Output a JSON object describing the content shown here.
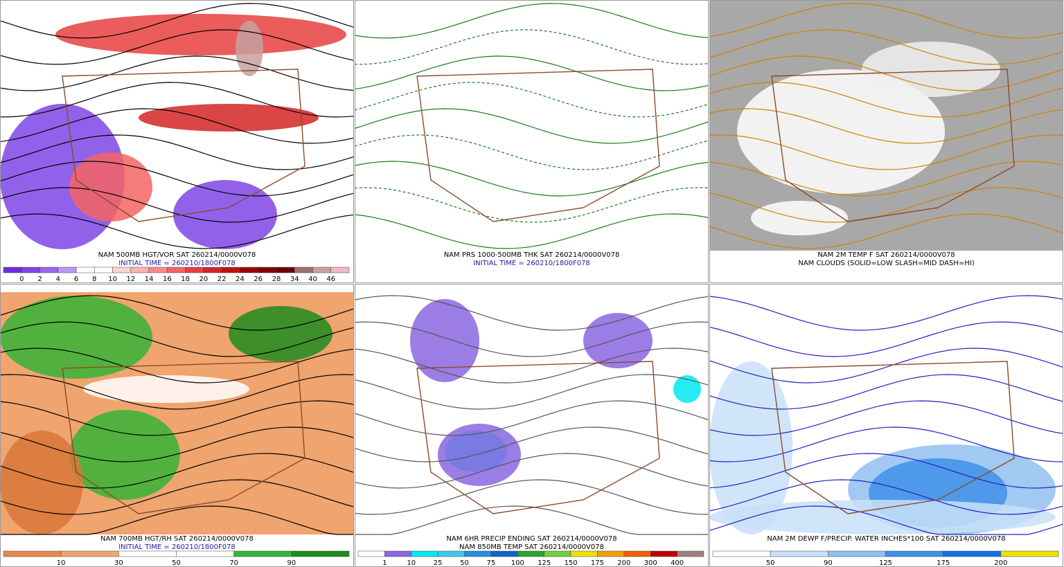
{
  "panels": [
    {
      "caption": [
        {
          "text": "NAM 500MB HGT/VOR SAT 260214/0000V078",
          "color": "#000000"
        },
        {
          "text": "INITIAL TIME = 260210/1800F078",
          "color": "#1a1aa0"
        }
      ],
      "colorbar": {
        "labels": [
          "0",
          "2",
          "4",
          "6",
          "8",
          "10",
          "12",
          "14",
          "16",
          "18",
          "20",
          "22",
          "24",
          "26",
          "28",
          "34",
          "40",
          "46"
        ],
        "colors": [
          "#6a2ee0",
          "#7f45e6",
          "#9a66ec",
          "#b898f2",
          "#ffffff",
          "#ffffff",
          "#ffd4d4",
          "#ffb0b0",
          "#ff8a8a",
          "#f46464",
          "#e84040",
          "#d42424",
          "#be1010",
          "#a00000",
          "#800000",
          "#6a0000",
          "#9a7070",
          "#c8a0a0",
          "#f0b8c8"
        ]
      }
    },
    {
      "caption": [
        {
          "text": "NAM PRS 1000-500MB THK SAT 260214/0000V078",
          "color": "#000000"
        },
        {
          "text": "INITIAL TIME = 260210/1800F078",
          "color": "#1a1aa0"
        }
      ]
    },
    {
      "caption": [
        {
          "text": "NAM 2M TEMP F SAT 260214/0000V078",
          "color": "#000000"
        },
        {
          "text": "NAM CLOUDS (SOLID=LOW SLASH=MID DASH=HI)",
          "color": "#000000"
        }
      ]
    },
    {
      "caption": [
        {
          "text": "NAM 700MB HGT/RH SAT 260214/0000V078",
          "color": "#000000"
        },
        {
          "text": "INITIAL TIME = 260210/1800F078",
          "color": "#1a1aa0"
        }
      ],
      "colorbar": {
        "labels": [
          "10",
          "30",
          "50",
          "70",
          "90"
        ],
        "colors": [
          "#e8874a",
          "#f0a46e",
          "#ffffff",
          "#ffffff",
          "#36b436",
          "#1e8c1e"
        ]
      }
    },
    {
      "caption": [
        {
          "text": "NAM 6HR PRECIP ENDING SAT 260214/0000V078",
          "color": "#000000"
        },
        {
          "text": "NAM 850MB TEMP SAT 260214/0000V078",
          "color": "#000000"
        }
      ],
      "colorbar": {
        "labels": [
          "1",
          "10",
          "25",
          "50",
          "75",
          "100",
          "125",
          "150",
          "175",
          "200",
          "300",
          "400"
        ],
        "colors": [
          "#ffffff",
          "#8a66e0",
          "#00e8f0",
          "#40c8f0",
          "#2090e0",
          "#1060d0",
          "#30a030",
          "#70d040",
          "#f0e000",
          "#f0a000",
          "#f06000",
          "#c00000",
          "#a08080"
        ]
      }
    },
    {
      "caption": [
        {
          "text": "NAM 2M DEWP F/PRECIP. WATER INCHES*100 SAT 260214/0000V078",
          "color": "#000000"
        }
      ],
      "colorbar": {
        "labels": [
          "50",
          "90",
          "125",
          "175",
          "200"
        ],
        "colors": [
          "#ffffff",
          "#c8e0f8",
          "#90c0f0",
          "#4090e8",
          "#1870e0",
          "#f0e000"
        ]
      }
    }
  ]
}
